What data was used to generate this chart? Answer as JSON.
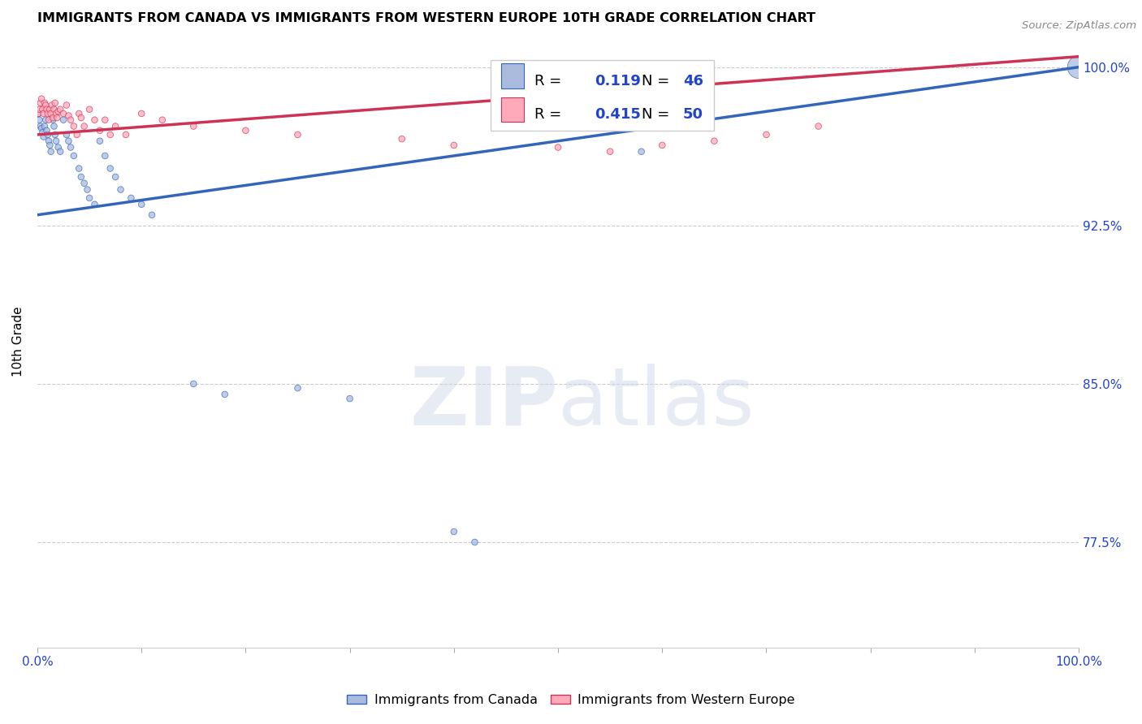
{
  "title": "IMMIGRANTS FROM CANADA VS IMMIGRANTS FROM WESTERN EUROPE 10TH GRADE CORRELATION CHART",
  "source": "Source: ZipAtlas.com",
  "ylabel": "10th Grade",
  "legend_label1": "Immigrants from Canada",
  "legend_label2": "Immigrants from Western Europe",
  "R_blue": 0.119,
  "N_blue": 46,
  "R_pink": 0.415,
  "N_pink": 50,
  "blue_color": "#AABBDD",
  "pink_color": "#FFAABB",
  "trendline_blue": "#3366BB",
  "trendline_pink": "#CC3355",
  "blue_scatter_x": [
    0.001,
    0.002,
    0.003,
    0.004,
    0.005,
    0.006,
    0.007,
    0.008,
    0.009,
    0.01,
    0.011,
    0.012,
    0.013,
    0.015,
    0.016,
    0.017,
    0.018,
    0.02,
    0.022,
    0.025,
    0.028,
    0.03,
    0.032,
    0.035,
    0.04,
    0.042,
    0.045,
    0.048,
    0.05,
    0.055,
    0.06,
    0.065,
    0.07,
    0.075,
    0.08,
    0.09,
    0.1,
    0.11,
    0.15,
    0.18,
    0.25,
    0.3,
    0.4,
    0.42,
    0.58,
    1.0
  ],
  "blue_scatter_y": [
    0.978,
    0.975,
    0.972,
    0.971,
    0.969,
    0.967,
    0.972,
    0.975,
    0.97,
    0.968,
    0.965,
    0.963,
    0.96,
    0.975,
    0.972,
    0.968,
    0.965,
    0.962,
    0.96,
    0.975,
    0.968,
    0.965,
    0.962,
    0.958,
    0.952,
    0.948,
    0.945,
    0.942,
    0.938,
    0.935,
    0.965,
    0.958,
    0.952,
    0.948,
    0.942,
    0.938,
    0.935,
    0.93,
    0.85,
    0.845,
    0.848,
    0.843,
    0.78,
    0.775,
    0.96,
    1.0
  ],
  "blue_scatter_size": [
    30,
    30,
    30,
    30,
    30,
    30,
    30,
    30,
    30,
    30,
    30,
    30,
    30,
    30,
    30,
    30,
    30,
    30,
    30,
    30,
    30,
    30,
    30,
    30,
    30,
    30,
    30,
    30,
    30,
    30,
    30,
    30,
    30,
    30,
    30,
    30,
    30,
    30,
    30,
    30,
    30,
    30,
    30,
    30,
    30,
    400
  ],
  "pink_scatter_x": [
    0.001,
    0.002,
    0.003,
    0.004,
    0.005,
    0.006,
    0.007,
    0.008,
    0.009,
    0.01,
    0.011,
    0.012,
    0.013,
    0.014,
    0.015,
    0.016,
    0.017,
    0.018,
    0.019,
    0.02,
    0.022,
    0.025,
    0.028,
    0.03,
    0.032,
    0.035,
    0.038,
    0.04,
    0.042,
    0.045,
    0.05,
    0.055,
    0.06,
    0.065,
    0.07,
    0.075,
    0.085,
    0.1,
    0.12,
    0.15,
    0.2,
    0.25,
    0.35,
    0.4,
    0.5,
    0.55,
    0.6,
    0.65,
    0.7,
    0.75
  ],
  "pink_scatter_y": [
    0.978,
    0.98,
    0.983,
    0.985,
    0.98,
    0.978,
    0.983,
    0.982,
    0.98,
    0.978,
    0.975,
    0.98,
    0.978,
    0.982,
    0.976,
    0.98,
    0.983,
    0.978,
    0.976,
    0.979,
    0.98,
    0.978,
    0.982,
    0.977,
    0.975,
    0.972,
    0.968,
    0.978,
    0.976,
    0.972,
    0.98,
    0.975,
    0.97,
    0.975,
    0.968,
    0.972,
    0.968,
    0.978,
    0.975,
    0.972,
    0.97,
    0.968,
    0.966,
    0.963,
    0.962,
    0.96,
    0.963,
    0.965,
    0.968,
    0.972
  ],
  "pink_scatter_size": [
    30,
    30,
    30,
    30,
    30,
    30,
    30,
    30,
    30,
    30,
    30,
    30,
    30,
    30,
    30,
    30,
    30,
    30,
    30,
    30,
    30,
    30,
    30,
    30,
    30,
    30,
    30,
    30,
    30,
    30,
    30,
    30,
    30,
    30,
    30,
    30,
    30,
    30,
    30,
    30,
    30,
    30,
    30,
    30,
    30,
    30,
    30,
    30,
    30,
    30
  ],
  "xlim": [
    0.0,
    1.0
  ],
  "ylim": [
    0.725,
    1.015
  ],
  "yticks": [
    0.775,
    0.85,
    0.925,
    1.0
  ],
  "ytick_labels": [
    "77.5%",
    "85.0%",
    "92.5%",
    "100.0%"
  ],
  "blue_trend_x0": 0.0,
  "blue_trend_y0": 0.93,
  "blue_trend_x1": 1.0,
  "blue_trend_y1": 1.0,
  "pink_trend_x0": 0.0,
  "pink_trend_y0": 0.968,
  "pink_trend_x1": 1.0,
  "pink_trend_y1": 1.005
}
